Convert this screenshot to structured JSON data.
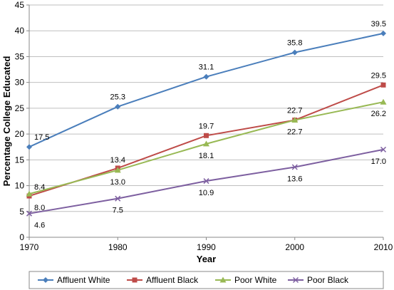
{
  "chart_data": {
    "type": "line",
    "x": [
      1970,
      1980,
      1990,
      2000,
      2010
    ],
    "xlabel": "Year",
    "ylabel": "Percentage College Educated",
    "ylim": [
      0,
      45
    ],
    "yticks": [
      0,
      5,
      10,
      15,
      20,
      25,
      30,
      35,
      40,
      45
    ],
    "grid": "horizontal",
    "legend_position": "bottom",
    "series": [
      {
        "name": "Affluent White",
        "color": "#4a7ebb",
        "marker": "diamond",
        "values": [
          17.5,
          25.3,
          31.1,
          35.8,
          39.5
        ],
        "labels": [
          "17.5",
          "25.3",
          "31.1",
          "35.8",
          "39.5"
        ]
      },
      {
        "name": "Affluent Black",
        "color": "#be4b48",
        "marker": "square",
        "values": [
          8.0,
          13.4,
          19.7,
          22.7,
          29.5
        ],
        "labels": [
          "8.0",
          "13.4",
          "19.7",
          "22.7",
          "29.5"
        ]
      },
      {
        "name": "Poor White",
        "color": "#98b954",
        "marker": "triangle",
        "values": [
          8.4,
          13.0,
          18.1,
          22.7,
          26.2
        ],
        "labels": [
          "8.4",
          "13.0",
          "18.1",
          "22.7",
          "26.2"
        ]
      },
      {
        "name": "Poor Black",
        "color": "#7d5fa0",
        "marker": "x",
        "values": [
          4.6,
          7.5,
          10.9,
          13.6,
          17.0
        ],
        "labels": [
          "4.6",
          "7.5",
          "10.9",
          "13.6",
          "17.0"
        ]
      }
    ]
  }
}
